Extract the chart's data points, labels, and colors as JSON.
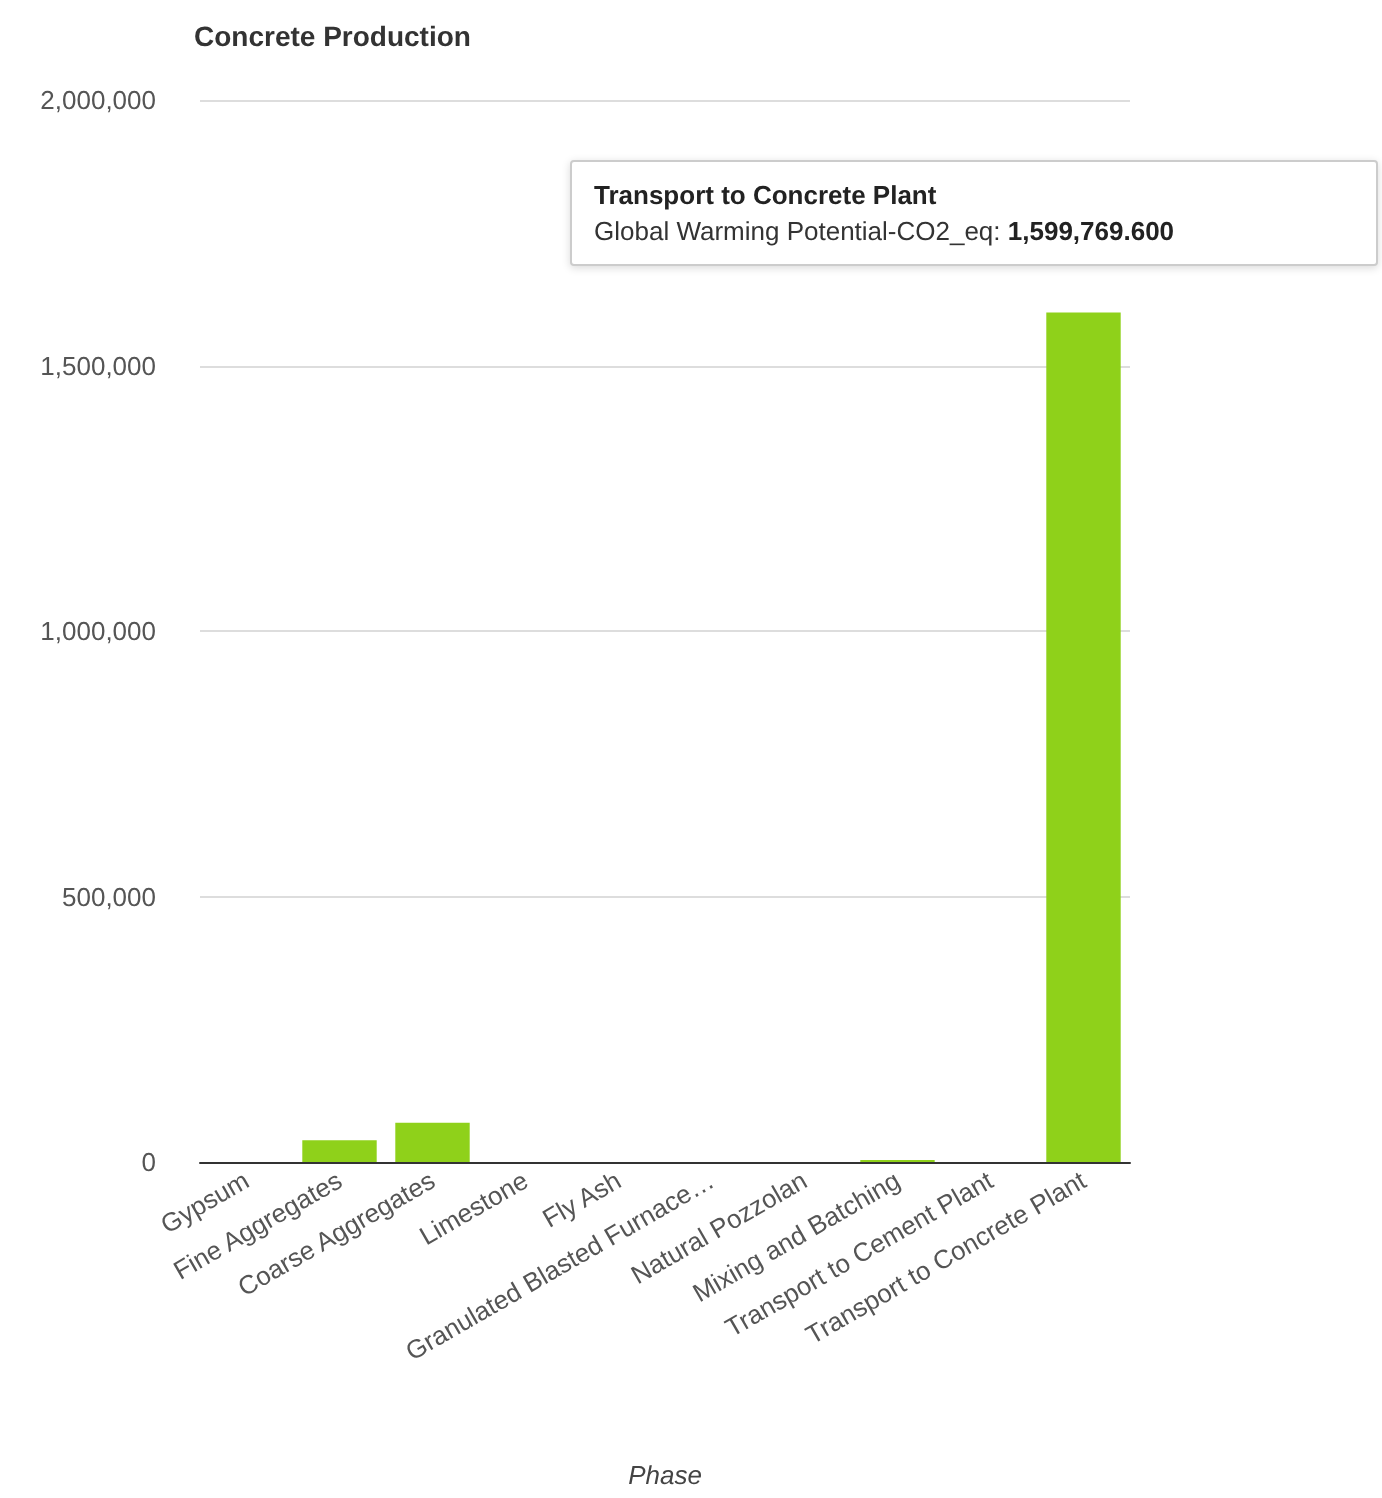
{
  "chart_data": {
    "type": "bar",
    "title": "Concrete Production",
    "xlabel": "Phase",
    "categories": [
      "Gypsum",
      "Fine Aggregates",
      "Coarse Aggregates",
      "Limestone",
      "Fly Ash",
      "Granulated Blasted Furnace…",
      "Natural Pozzolan",
      "Mixing and Batching",
      "Transport to Cement Plant",
      "Transport to Concrete Plant"
    ],
    "values": [
      0,
      41000,
      74000,
      0,
      0,
      0,
      0,
      4000,
      0,
      1599769.6
    ],
    "color": "#8fd11a",
    "ylim": [
      0,
      2000000
    ],
    "yticks": [
      0,
      {
        "value": 500000,
        "label": "500,000"
      },
      {
        "value": 1000000,
        "label": "1,000,000"
      },
      {
        "value": 1500000,
        "label": "1,500,000"
      },
      {
        "value": 2000000,
        "label": "2,000,000"
      }
    ],
    "grid": "y",
    "annotations": [
      {
        "text": "Transport to Concrete Plant\nGlobal Warming Potential-CO2_eq: 1,599,769.600",
        "x": "Transport to Concrete Plant",
        "y": 1599769.6
      }
    ]
  }
}
